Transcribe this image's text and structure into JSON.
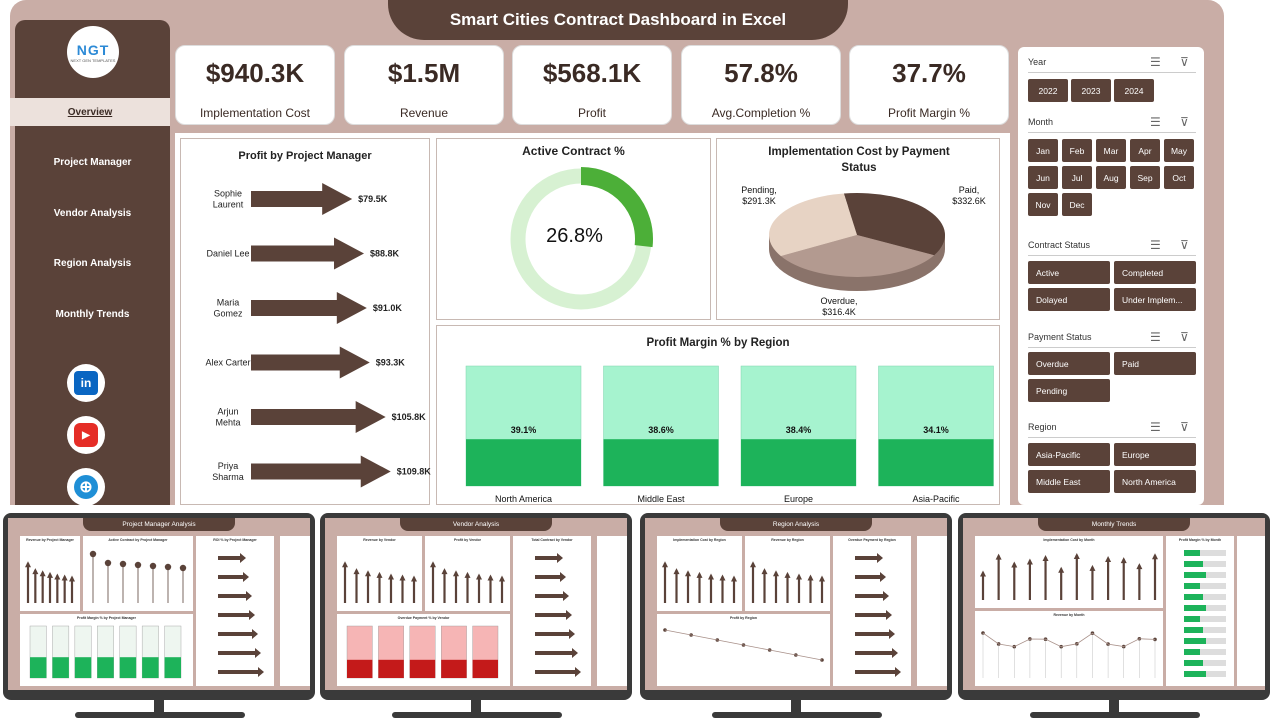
{
  "title": "Smart Cities Contract Dashboard in Excel",
  "logo": {
    "text": "NGT",
    "sub": "NEXT GEN TEMPLATES"
  },
  "nav": [
    "Overview",
    "Project Manager",
    "Vendor Analysis",
    "Region Analysis",
    "Monthly Trends"
  ],
  "social": [
    {
      "icon": "linkedin-icon",
      "glyph": "in",
      "color": "#0a66c2"
    },
    {
      "icon": "youtube-icon",
      "glyph": "▶",
      "color": "#e52d27"
    },
    {
      "icon": "globe-icon",
      "glyph": "⊕",
      "color": "#1f8fd6"
    }
  ],
  "kpis": [
    {
      "value": "$940.3K",
      "label": "Implementation Cost"
    },
    {
      "value": "$1.5M",
      "label": "Revenue"
    },
    {
      "value": "$568.1K",
      "label": "Profit"
    },
    {
      "value": "57.8%",
      "label": "Avg.Completion %"
    },
    {
      "value": "37.7%",
      "label": "Profit Margin %"
    }
  ],
  "charts": {
    "pm": {
      "title": "Profit by Project Manager"
    },
    "active": {
      "title": "Active Contract %",
      "value": "26.8%",
      "fraction": 0.268
    },
    "payment": {
      "title": "Implementation Cost by Payment Status"
    },
    "margin": {
      "title": "Profit Margin % by Region"
    }
  },
  "chart_data": [
    {
      "type": "bar",
      "title": "Profit by Project Manager",
      "categories": [
        "Sophie Laurent",
        "Daniel Lee",
        "Maria Gomez",
        "Alex Carter",
        "Arjun Mehta",
        "Priya Sharma"
      ],
      "values": [
        79.5,
        88.8,
        91.0,
        93.3,
        105.8,
        109.8
      ],
      "labels": [
        "$79.5K",
        "$88.8K",
        "$91.0K",
        "$93.3K",
        "$105.8K",
        "$109.8K"
      ]
    },
    {
      "type": "pie",
      "title": "Active Contract %",
      "values": [
        26.8,
        73.2
      ],
      "label": "26.8%"
    },
    {
      "type": "pie",
      "title": "Implementation Cost by Payment Status",
      "categories": [
        "Pending",
        "Paid",
        "Overdue"
      ],
      "values": [
        291.3,
        332.6,
        316.4
      ],
      "labels": [
        "$291.3K",
        "$332.6K",
        "$316.4K"
      ],
      "colors": [
        "#e7d3c4",
        "#5a4239",
        "#b39a90"
      ]
    },
    {
      "type": "bar",
      "title": "Profit Margin % by Region",
      "categories": [
        "North America",
        "Middle East",
        "Europe",
        "Asia-Pacific"
      ],
      "values": [
        39.1,
        38.6,
        38.4,
        34.1
      ],
      "labels": [
        "39.1%",
        "38.6%",
        "38.4%",
        "34.1%"
      ]
    }
  ],
  "filters": {
    "year": {
      "title": "Year",
      "items": [
        "2022",
        "2023",
        "2024"
      ]
    },
    "month": {
      "title": "Month",
      "items": [
        "Jan",
        "Feb",
        "Mar",
        "Apr",
        "May",
        "Jun",
        "Jul",
        "Aug",
        "Sep",
        "Oct",
        "Nov",
        "Dec"
      ]
    },
    "status": {
      "title": "Contract Status",
      "items": [
        "Active",
        "Completed",
        "Dolayed",
        "Under Implem..."
      ]
    },
    "payment": {
      "title": "Payment Status",
      "items": [
        "Overdue",
        "Paid",
        "Pending"
      ]
    },
    "region": {
      "title": "Region",
      "items": [
        "Asia-Pacific",
        "Europe",
        "Middle East",
        "North America"
      ]
    }
  },
  "monitors": [
    {
      "title": "Project Manager Analysis",
      "panels": [
        "Revenue by Project Manager",
        "Active Contract by Project Manager",
        "ROI % by Project Manager",
        "Profit Margin % by Project Manager"
      ]
    },
    {
      "title": "Vendor Analysis",
      "panels": [
        "Revenue by Vendor",
        "Profit by Vendor",
        "Total Contract by Vendor",
        "Overdue Payment % by Vendor"
      ]
    },
    {
      "title": "Region Analysis",
      "panels": [
        "Implementation Cost by Region",
        "Revenue by Region",
        "Overdue Payment by Region",
        "Profit by Region"
      ]
    },
    {
      "title": "Monthly Trends",
      "panels": [
        "Implementation Cost by Month",
        "Profit Margin % by Month",
        "Revenue by Month"
      ]
    }
  ],
  "colors": {
    "brown": "#5a4239",
    "frame": "#c9ada6",
    "green": "#1db35a",
    "lightgreen": "#a6f3cf",
    "ring": "#4caf38"
  }
}
